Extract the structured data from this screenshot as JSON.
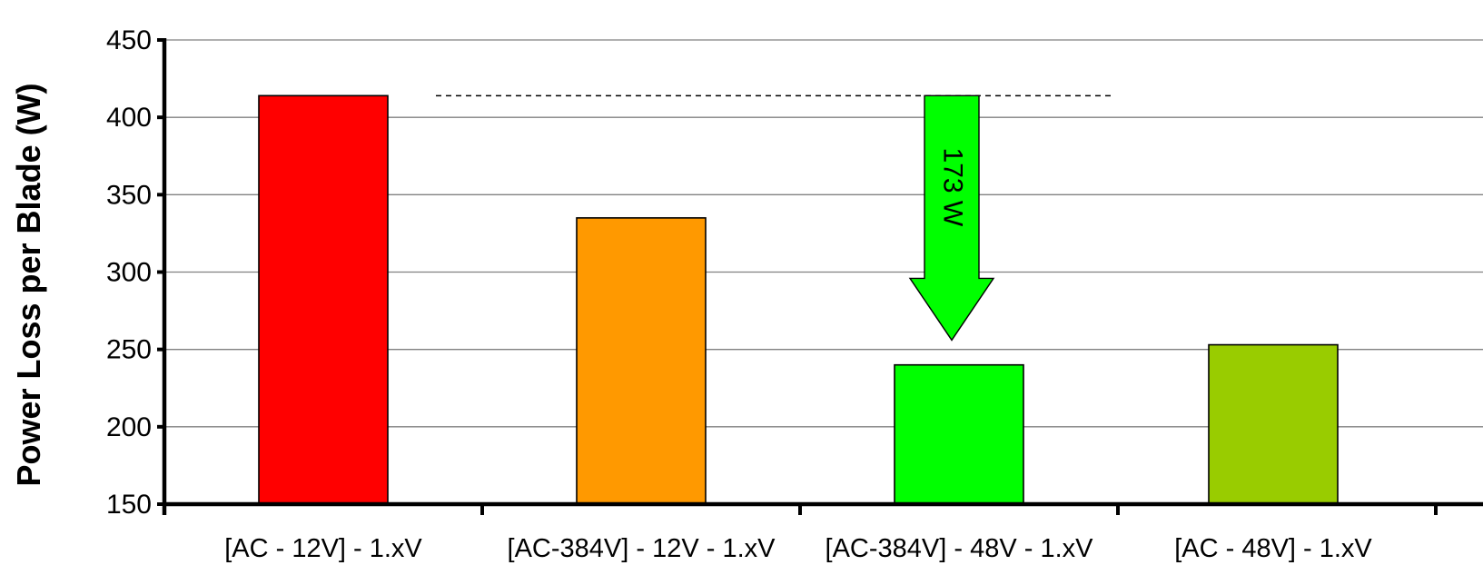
{
  "chart_data": {
    "type": "bar",
    "title": "",
    "xlabel": "",
    "ylabel": "Power Loss per Blade (W)",
    "ylim": [
      150,
      450
    ],
    "yticks": [
      150,
      200,
      250,
      300,
      350,
      400,
      450
    ],
    "grid": true,
    "categories": [
      "[AC - 12V] - 1.xV",
      "[AC-384V] - 12V - 1.xV",
      "[AC-384V] - 48V - 1.xV",
      "[AC - 48V] - 1.xV"
    ],
    "values": [
      414,
      335,
      240,
      253
    ],
    "colors": [
      "#ff0000",
      "#ff9900",
      "#00ff00",
      "#99cc00"
    ],
    "reference_line": {
      "value": 414,
      "style": "dashed"
    },
    "annotation": {
      "text": "173 W",
      "shape": "down-arrow",
      "color": "#00ff00",
      "from": 414,
      "to": 256
    }
  }
}
